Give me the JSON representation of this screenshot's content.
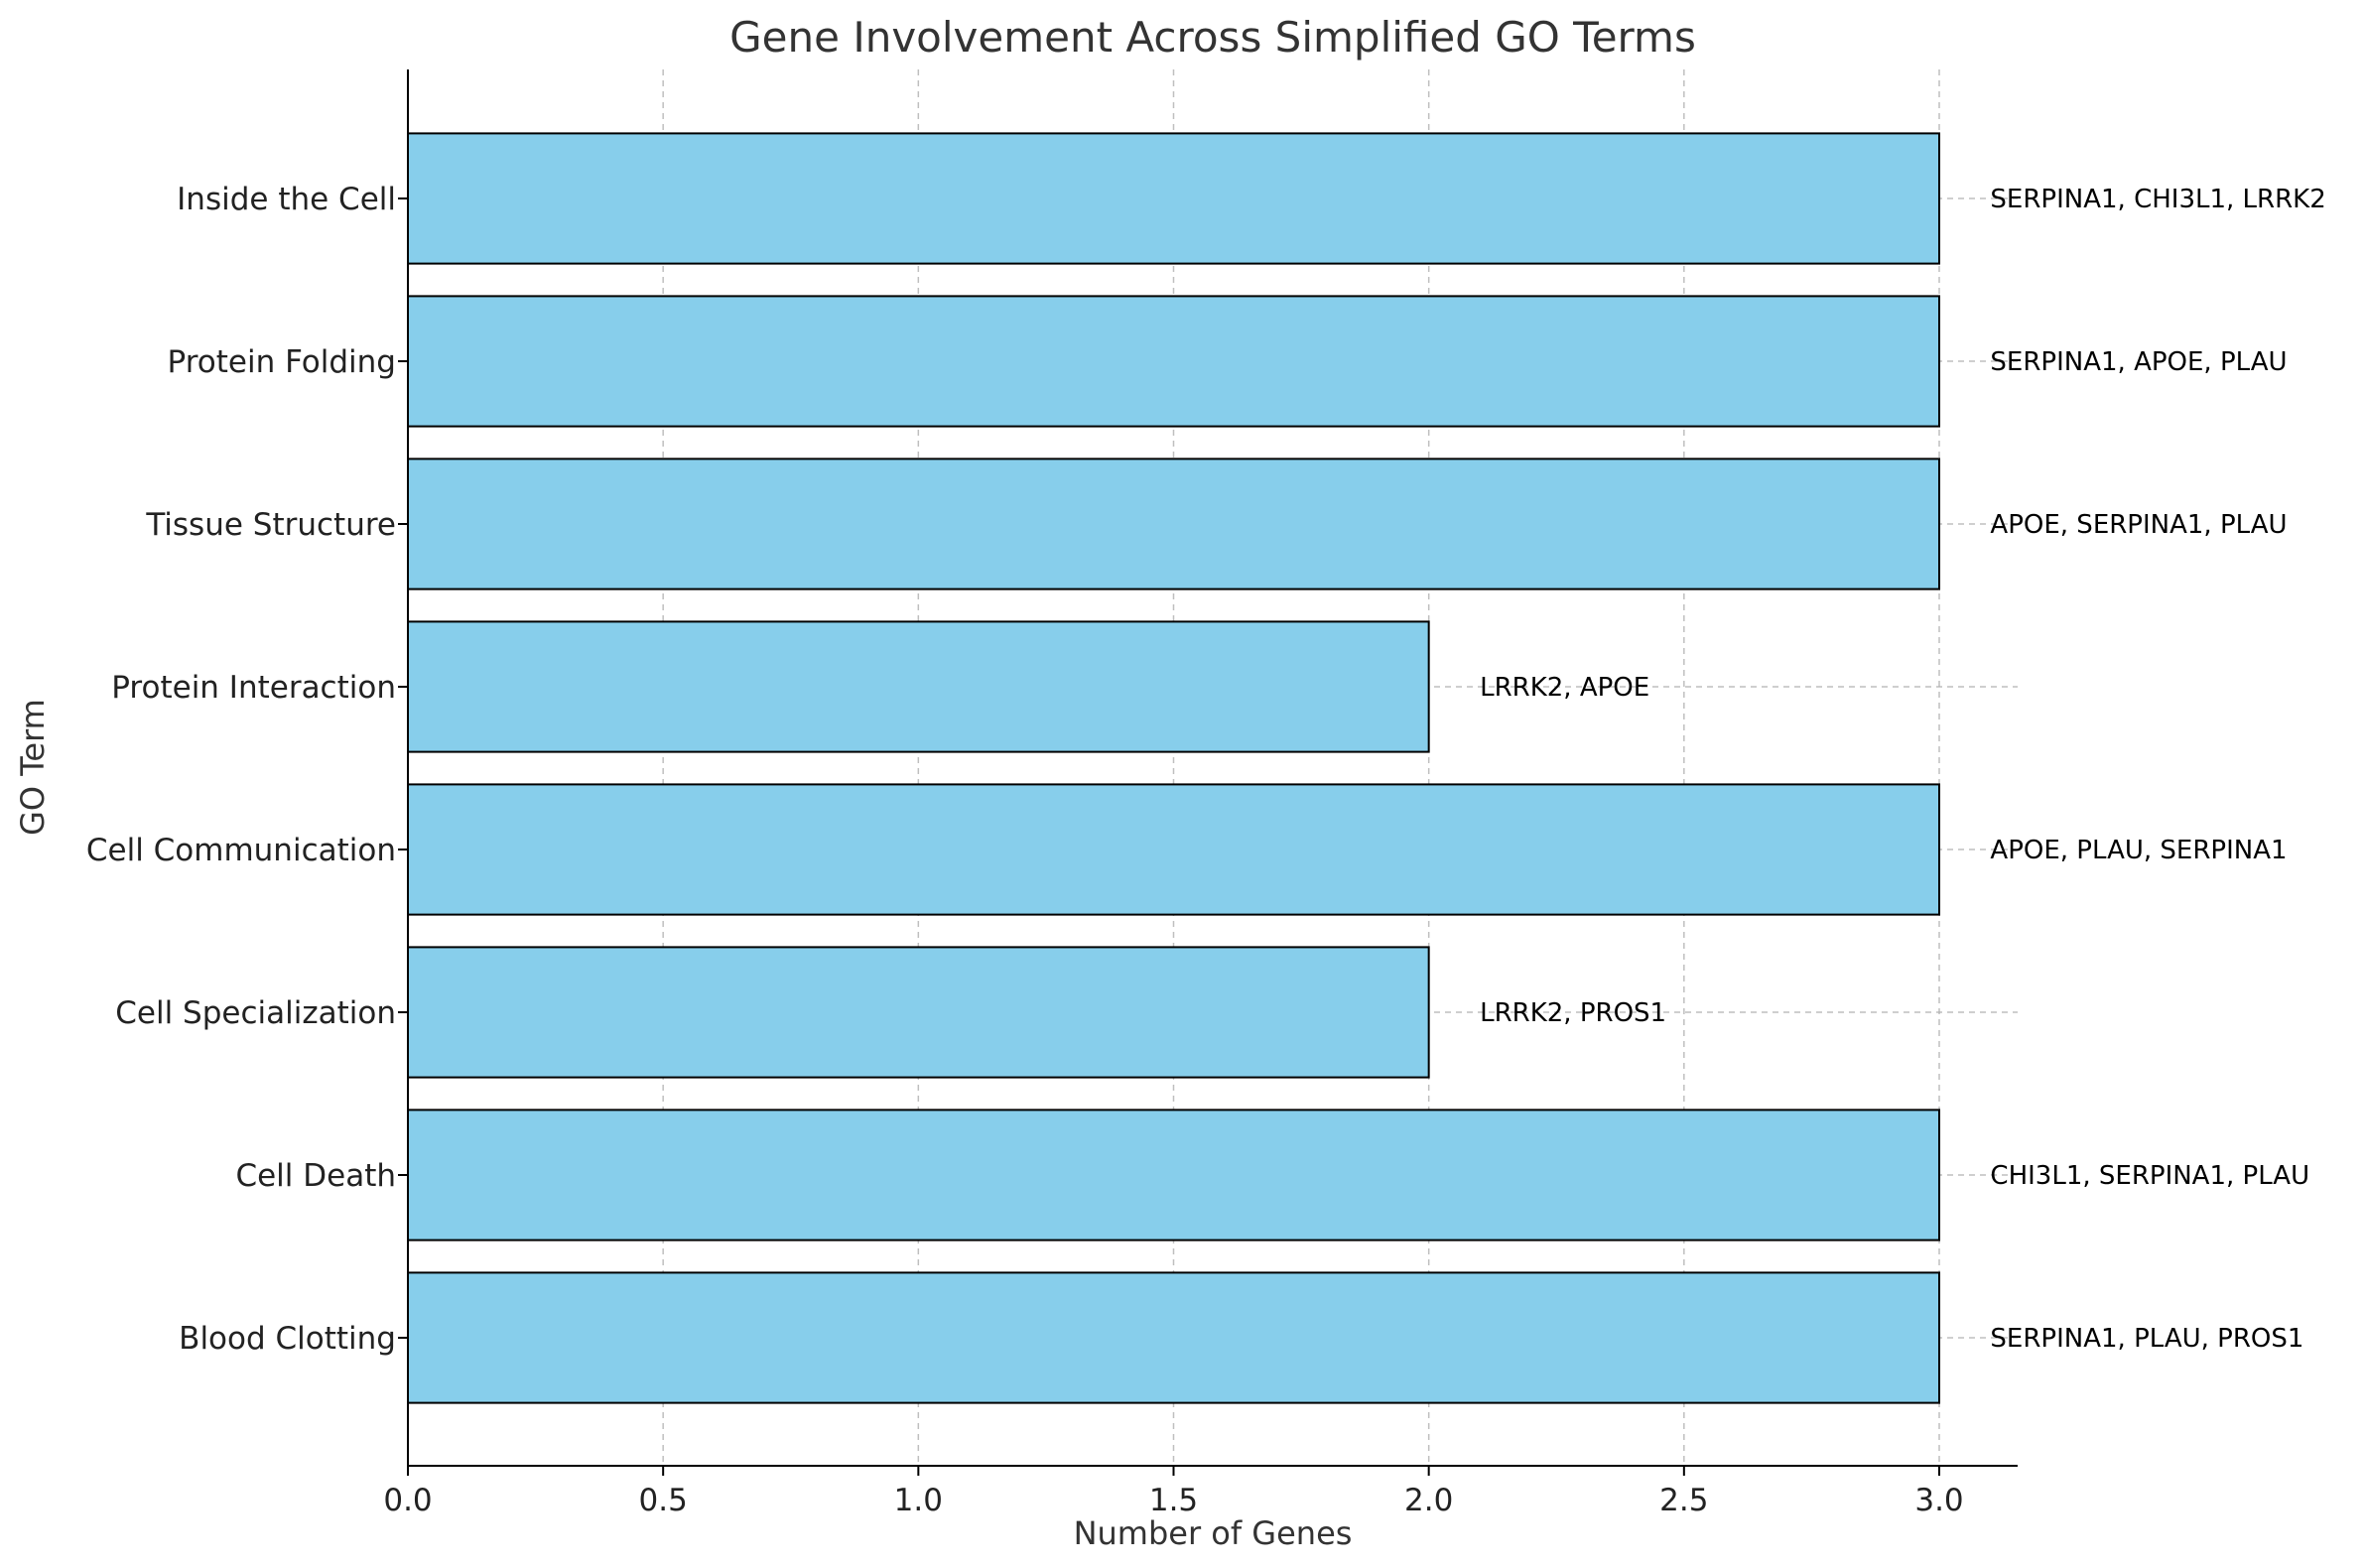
{
  "chart_data": {
    "type": "bar",
    "orientation": "horizontal",
    "title": "Gene Involvement Across Simplified GO Terms",
    "xlabel": "Number of Genes",
    "ylabel": "GO Term",
    "xlim": [
      0,
      3.15
    ],
    "xticks": [
      "0.0",
      "0.5",
      "1.0",
      "1.5",
      "2.0",
      "2.5",
      "3.0"
    ],
    "grid": true,
    "bar_color": "#87CEEB",
    "bar_edge_color": "#000000",
    "categories": [
      "Blood Clotting",
      "Cell Death",
      "Cell Specialization",
      "Cell Communication",
      "Protein Interaction",
      "Tissue Structure",
      "Protein Folding",
      "Inside the Cell"
    ],
    "values": [
      3,
      3,
      2,
      3,
      2,
      3,
      3,
      3
    ],
    "annotations": [
      "SERPINA1, PLAU, PROS1",
      "CHI3L1, SERPINA1, PLAU",
      "LRRK2, PROS1",
      "APOE, PLAU, SERPINA1",
      "LRRK2, APOE",
      "APOE, SERPINA1, PLAU",
      "SERPINA1, APOE, PLAU",
      "SERPINA1, CHI3L1, LRRK2"
    ]
  }
}
